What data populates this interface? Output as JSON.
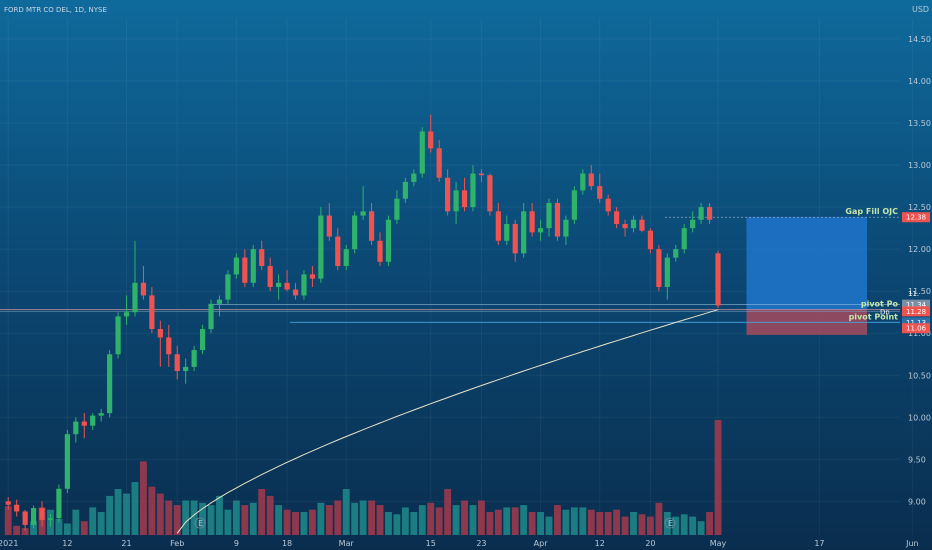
{
  "header": {
    "symbol_line": "FORD MTR CO DEL, 1D, NYSE",
    "currency": "USD"
  },
  "colors": {
    "up": "#26a69a",
    "up_body": "#2fb36a",
    "down": "#ef5350",
    "vol_up": "#1f8a8a",
    "vol_down": "#a63a4c"
  },
  "chart_data": {
    "type": "candlestick",
    "title": "FORD MTR CO DEL, 1D, NYSE",
    "ylim": [
      8.6,
      14.75
    ],
    "y_ticks": [
      9.0,
      9.5,
      10.0,
      10.5,
      11.0,
      11.5,
      12.0,
      12.5,
      13.0,
      13.5,
      14.0,
      14.5
    ],
    "y_tick_labels": [
      "9.00",
      "9.50",
      "10.00",
      "10.50",
      "11.00",
      "11.50",
      "12.00",
      "12.50",
      "13.00",
      "13.50",
      "14.00",
      "14.50"
    ],
    "x_labels": [
      "2021",
      "12",
      "21",
      "Feb",
      "9",
      "18",
      "Mar",
      "15",
      "23",
      "Apr",
      "12",
      "20",
      "May",
      "17",
      "Jun"
    ],
    "x_label_index": [
      0,
      7,
      14,
      20,
      27,
      33,
      40,
      50,
      56,
      63,
      70,
      76,
      84,
      96,
      107
    ],
    "candles": [
      [
        9.0,
        9.05,
        8.9,
        8.96
      ],
      [
        8.96,
        9.02,
        8.82,
        8.88
      ],
      [
        8.88,
        8.9,
        8.65,
        8.72
      ],
      [
        8.72,
        8.95,
        8.68,
        8.92
      ],
      [
        8.92,
        9.0,
        8.7,
        8.78
      ],
      [
        8.78,
        8.85,
        8.7,
        8.8
      ],
      [
        8.8,
        9.2,
        8.75,
        9.15
      ],
      [
        9.15,
        9.85,
        9.1,
        9.8
      ],
      [
        9.8,
        10.0,
        9.7,
        9.95
      ],
      [
        9.95,
        10.05,
        9.75,
        9.9
      ],
      [
        9.9,
        10.05,
        9.85,
        10.02
      ],
      [
        10.02,
        10.1,
        9.95,
        10.05
      ],
      [
        10.05,
        10.8,
        10.0,
        10.75
      ],
      [
        10.75,
        11.25,
        10.7,
        11.2
      ],
      [
        11.2,
        11.45,
        11.1,
        11.25
      ],
      [
        11.25,
        12.1,
        11.2,
        11.6
      ],
      [
        11.6,
        11.8,
        11.4,
        11.45
      ],
      [
        11.45,
        11.55,
        11.0,
        11.05
      ],
      [
        11.05,
        11.15,
        10.6,
        10.95
      ],
      [
        10.95,
        11.1,
        10.6,
        10.75
      ],
      [
        10.75,
        10.85,
        10.45,
        10.55
      ],
      [
        10.55,
        10.7,
        10.4,
        10.6
      ],
      [
        10.6,
        10.85,
        10.55,
        10.8
      ],
      [
        10.8,
        11.1,
        10.75,
        11.05
      ],
      [
        11.05,
        11.4,
        11.0,
        11.35
      ],
      [
        11.35,
        11.45,
        11.2,
        11.4
      ],
      [
        11.4,
        11.75,
        11.35,
        11.7
      ],
      [
        11.7,
        11.95,
        11.65,
        11.9
      ],
      [
        11.9,
        12.0,
        11.55,
        11.6
      ],
      [
        11.6,
        12.05,
        11.55,
        12.0
      ],
      [
        12.0,
        12.1,
        11.75,
        11.8
      ],
      [
        11.8,
        11.9,
        11.5,
        11.55
      ],
      [
        11.55,
        11.7,
        11.4,
        11.6
      ],
      [
        11.6,
        11.75,
        11.5,
        11.52
      ],
      [
        11.52,
        11.6,
        11.4,
        11.45
      ],
      [
        11.45,
        11.75,
        11.4,
        11.7
      ],
      [
        11.7,
        11.8,
        11.55,
        11.65
      ],
      [
        11.65,
        12.5,
        11.6,
        12.4
      ],
      [
        12.4,
        12.55,
        12.1,
        12.15
      ],
      [
        12.15,
        12.25,
        11.75,
        11.8
      ],
      [
        11.8,
        12.05,
        11.75,
        12.0
      ],
      [
        12.0,
        12.45,
        11.95,
        12.4
      ],
      [
        12.4,
        12.75,
        12.35,
        12.45
      ],
      [
        12.45,
        12.55,
        12.05,
        12.1
      ],
      [
        12.1,
        12.2,
        11.8,
        11.85
      ],
      [
        11.85,
        12.4,
        11.8,
        12.35
      ],
      [
        12.35,
        12.7,
        12.3,
        12.6
      ],
      [
        12.6,
        12.85,
        12.55,
        12.8
      ],
      [
        12.8,
        12.95,
        12.75,
        12.9
      ],
      [
        12.9,
        13.45,
        12.85,
        13.4
      ],
      [
        13.4,
        13.6,
        13.15,
        13.2
      ],
      [
        13.2,
        13.3,
        12.8,
        12.85
      ],
      [
        12.85,
        12.95,
        12.4,
        12.45
      ],
      [
        12.45,
        12.8,
        12.3,
        12.7
      ],
      [
        12.7,
        12.85,
        12.45,
        12.5
      ],
      [
        12.5,
        13.0,
        12.45,
        12.9
      ],
      [
        12.9,
        12.95,
        12.8,
        12.88
      ],
      [
        12.88,
        12.9,
        12.4,
        12.45
      ],
      [
        12.45,
        12.55,
        12.05,
        12.1
      ],
      [
        12.1,
        12.4,
        12.05,
        12.3
      ],
      [
        12.3,
        12.35,
        11.85,
        11.95
      ],
      [
        11.95,
        12.55,
        11.9,
        12.45
      ],
      [
        12.45,
        12.55,
        12.15,
        12.2
      ],
      [
        12.2,
        12.35,
        12.1,
        12.25
      ],
      [
        12.25,
        12.6,
        12.15,
        12.55
      ],
      [
        12.55,
        12.6,
        12.1,
        12.15
      ],
      [
        12.15,
        12.4,
        12.05,
        12.35
      ],
      [
        12.35,
        12.75,
        12.3,
        12.7
      ],
      [
        12.7,
        12.95,
        12.65,
        12.9
      ],
      [
        12.9,
        13.0,
        12.7,
        12.75
      ],
      [
        12.75,
        12.9,
        12.55,
        12.6
      ],
      [
        12.6,
        12.65,
        12.4,
        12.45
      ],
      [
        12.45,
        12.5,
        12.25,
        12.3
      ],
      [
        12.3,
        12.35,
        12.15,
        12.25
      ],
      [
        12.25,
        12.4,
        12.2,
        12.35
      ],
      [
        12.35,
        12.4,
        12.2,
        12.22
      ],
      [
        12.22,
        12.25,
        11.95,
        12.0
      ],
      [
        12.0,
        12.05,
        11.5,
        11.55
      ],
      [
        11.55,
        11.95,
        11.4,
        11.9
      ],
      [
        11.9,
        12.05,
        11.85,
        12.0
      ],
      [
        12.0,
        12.3,
        11.95,
        12.25
      ],
      [
        12.25,
        12.45,
        12.2,
        12.35
      ],
      [
        12.35,
        12.55,
        12.3,
        12.5
      ],
      [
        12.5,
        12.55,
        12.3,
        12.35
      ],
      [
        11.95,
        11.98,
        11.3,
        11.33
      ]
    ],
    "volume": [
      25,
      8,
      6,
      12,
      24,
      22,
      14,
      10,
      22,
      12,
      24,
      20,
      34,
      40,
      36,
      46,
      64,
      42,
      36,
      30,
      26,
      30,
      30,
      28,
      26,
      34,
      22,
      30,
      26,
      28,
      40,
      34,
      26,
      22,
      20,
      20,
      22,
      28,
      26,
      30,
      40,
      28,
      30,
      30,
      26,
      20,
      18,
      24,
      20,
      26,
      28,
      24,
      40,
      26,
      30,
      26,
      30,
      20,
      22,
      24,
      24,
      26,
      20,
      20,
      16,
      26,
      22,
      24,
      24,
      22,
      20,
      20,
      22,
      16,
      20,
      18,
      16,
      28,
      20,
      16,
      18,
      16,
      12,
      20,
      100
    ],
    "volume_max": 100,
    "sma_start_index": 20,
    "sma_start_value": 8.62,
    "sma_end_value": 11.28,
    "annotations": [
      {
        "label": "Gap Fill OJC",
        "price": 12.38
      },
      {
        "label": "pivot Po",
        "price": 11.28
      },
      {
        "label": "pivot Point",
        "price": 11.13
      }
    ],
    "price_labels": [
      {
        "text": "12.38",
        "price": 12.38,
        "color": "#ef5350"
      },
      {
        "text": "11.34",
        "price": 11.34,
        "color": "#7a8fa3"
      },
      {
        "text": "11.28",
        "price": 11.26,
        "color": "#ef5350"
      },
      {
        "text": "11.13",
        "price": 11.13,
        "color": "#2b6fa8"
      },
      {
        "text": "11.06",
        "price": 11.06,
        "color": "#ef5350"
      }
    ],
    "position_tool": {
      "entry": 11.28,
      "target": 12.38,
      "stop": 10.98,
      "start_index": 85,
      "end_index": 104
    },
    "overlay_labels": [
      "11.",
      "Dn",
      "E",
      "E"
    ]
  }
}
